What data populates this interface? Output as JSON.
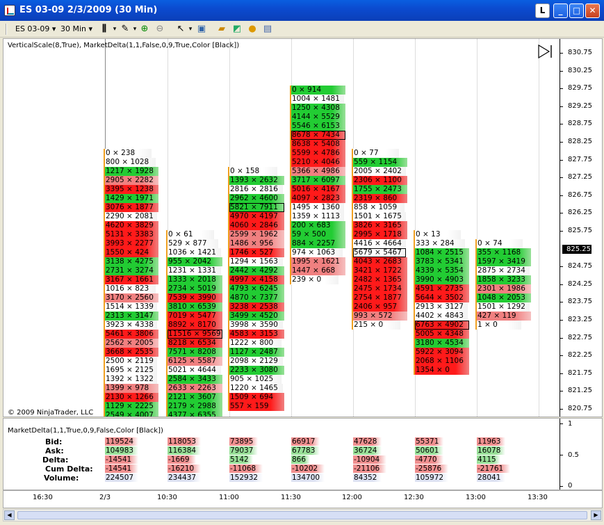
{
  "window": {
    "title": "ES 03-09  2/3/2009 (30 Min)",
    "l_label": "L",
    "min_label": "_",
    "max_label": "□",
    "close_label": "✕"
  },
  "toolbar": {
    "instrument": "ES 03-09",
    "interval": "30 Min"
  },
  "chart": {
    "indicator_label": "VerticalScale(8,True), MarketDelta(1,1,False,0,9,True,Color [Black])",
    "copyright": "© 2009 NinjaTrader, LLC",
    "current_price": "825.25",
    "price_labels": [
      "830.75",
      "830.25",
      "829.75",
      "829.25",
      "828.75",
      "828.25",
      "827.75",
      "827.25",
      "826.75",
      "826.25",
      "825.75",
      "824.75",
      "824.25",
      "823.75",
      "823.25",
      "822.75",
      "822.25",
      "821.75",
      "821.25",
      "820.75"
    ],
    "colors": {
      "green": "#22cc33",
      "lightgreen": "#99e099",
      "red": "#ff1a1a",
      "lightred": "#f08080",
      "pink": "#f6c0c0"
    }
  },
  "columns": [
    {
      "rows": [
        [
          "0 × 238",
          "w"
        ],
        [
          "800 × 1028",
          "w"
        ],
        [
          "1217 × 1928",
          "g"
        ],
        [
          "2905 × 2282",
          "lr"
        ],
        [
          "3395 × 1238",
          "r"
        ],
        [
          "1429 × 1971",
          "g"
        ],
        [
          "3076 × 1877",
          "r"
        ],
        [
          "2290 × 2081",
          "w"
        ],
        [
          "4620 × 3829",
          "r"
        ],
        [
          "5131 × 3383",
          "r"
        ],
        [
          "3993 × 2277",
          "r"
        ],
        [
          "1550 × 424",
          "r"
        ],
        [
          "3138 × 4275",
          "g"
        ],
        [
          "2731 × 3274",
          "g"
        ],
        [
          "3167 × 1661",
          "r"
        ],
        [
          "1016 × 823",
          "w"
        ],
        [
          "3170 × 2560",
          "lr"
        ],
        [
          "1514 × 1339",
          "w"
        ],
        [
          "2313 × 3147",
          "g"
        ],
        [
          "3923 × 4338",
          "w"
        ],
        [
          "5461 × 3806",
          "r"
        ],
        [
          "2562 × 2005",
          "lr"
        ],
        [
          "3668 × 2535",
          "r"
        ],
        [
          "2500 × 2119",
          "w"
        ],
        [
          "1695 × 2125",
          "w"
        ],
        [
          "1392 × 1322",
          "w"
        ],
        [
          "1399 × 978",
          "lr"
        ],
        [
          "2130 × 1266",
          "r"
        ],
        [
          "1129 × 2225",
          "g"
        ],
        [
          "2549 × 4007",
          "g"
        ]
      ]
    },
    {
      "rows": [
        [
          "0 × 61",
          "w"
        ],
        [
          "529 × 877",
          "w"
        ],
        [
          "1036 × 1421",
          "w"
        ],
        [
          "955 × 2042",
          "g"
        ],
        [
          "1231 × 1331",
          "w"
        ],
        [
          "1333 × 2018",
          "g"
        ],
        [
          "2734 × 5019",
          "g"
        ],
        [
          "7539 × 3990",
          "r"
        ],
        [
          "3810 × 6539",
          "g"
        ],
        [
          "7019 × 5477",
          "r"
        ],
        [
          "8892 × 8170",
          "r"
        ],
        [
          "11516 × 9569",
          "r"
        ],
        [
          "8218 × 6534",
          "r"
        ],
        [
          "7571 × 8208",
          "g"
        ],
        [
          "6125 × 5587",
          "lr"
        ],
        [
          "5021 × 4644",
          "w"
        ],
        [
          "2584 × 3433",
          "g"
        ],
        [
          "2633 × 2263",
          "lr"
        ],
        [
          "2121 × 3607",
          "g"
        ],
        [
          "2179 × 2988",
          "g"
        ],
        [
          "4377 × 6355",
          "g"
        ]
      ]
    },
    {
      "rows": [
        [
          "0 × 158",
          "w"
        ],
        [
          "1393 × 2632",
          "g"
        ],
        [
          "2816 × 2816",
          "w"
        ],
        [
          "2962 × 4600",
          "g"
        ],
        [
          "5821 × 7911",
          "g"
        ],
        [
          "4970 × 4197",
          "r"
        ],
        [
          "4060 × 2846",
          "r"
        ],
        [
          "2599 × 1962",
          "lr"
        ],
        [
          "1486 × 956",
          "lr"
        ],
        [
          "1746 × 527",
          "r"
        ],
        [
          "1294 × 1563",
          "w"
        ],
        [
          "2442 × 4292",
          "g"
        ],
        [
          "4997 × 4158",
          "r"
        ],
        [
          "4793 × 6245",
          "g"
        ],
        [
          "4870 × 7377",
          "g"
        ],
        [
          "3238 × 2538",
          "r"
        ],
        [
          "3499 × 4520",
          "g"
        ],
        [
          "3998 × 3590",
          "w"
        ],
        [
          "4583 × 3153",
          "r"
        ],
        [
          "1222 × 800",
          "w"
        ],
        [
          "1127 × 2487",
          "g"
        ],
        [
          "2098 × 2129",
          "w"
        ],
        [
          "2233 × 3080",
          "g"
        ],
        [
          "905 × 1025",
          "w"
        ],
        [
          "1220 × 1465",
          "w"
        ],
        [
          "1509 × 694",
          "r"
        ],
        [
          "557 × 159",
          "r"
        ]
      ]
    },
    {
      "rows": [
        [
          "0 × 914",
          "g"
        ],
        [
          "1004 × 1481",
          "w"
        ],
        [
          "1250 × 4308",
          "g"
        ],
        [
          "4144 × 5529",
          "g"
        ],
        [
          "5546 × 6153",
          "g"
        ],
        [
          "8678 × 7434",
          "r"
        ],
        [
          "8638 × 5408",
          "r"
        ],
        [
          "5599 × 4786",
          "r"
        ],
        [
          "5210 × 4046",
          "r"
        ],
        [
          "5366 × 4986",
          "lr"
        ],
        [
          "3717 × 6097",
          "g"
        ],
        [
          "5016 × 4167",
          "r"
        ],
        [
          "4097 × 2823",
          "r"
        ],
        [
          "1495 × 1360",
          "w"
        ],
        [
          "1359 × 1113",
          "w"
        ],
        [
          "200 × 683",
          "g"
        ],
        [
          "59 × 500",
          "g"
        ],
        [
          "884 × 2257",
          "g"
        ],
        [
          "974 × 1063",
          "w"
        ],
        [
          "1995 × 1621",
          "lr"
        ],
        [
          "1447 × 668",
          "lr"
        ],
        [
          "239 × 0",
          "w"
        ]
      ]
    },
    {
      "rows": [
        [
          "0 × 77",
          "w"
        ],
        [
          "559 × 1154",
          "g"
        ],
        [
          "2005 × 2402",
          "w"
        ],
        [
          "2306 × 1100",
          "r"
        ],
        [
          "1755 × 2473",
          "g"
        ],
        [
          "2319 × 860",
          "r"
        ],
        [
          "858 × 1059",
          "w"
        ],
        [
          "1501 × 1675",
          "w"
        ],
        [
          "3826 × 3165",
          "r"
        ],
        [
          "2995 × 1718",
          "r"
        ],
        [
          "4416 × 4664",
          "w"
        ],
        [
          "5679 × 5467",
          "w"
        ],
        [
          "4043 × 2683",
          "r"
        ],
        [
          "3421 × 1722",
          "r"
        ],
        [
          "2482 × 1365",
          "r"
        ],
        [
          "2475 × 1734",
          "r"
        ],
        [
          "2754 × 1877",
          "r"
        ],
        [
          "2406 × 957",
          "r"
        ],
        [
          "993 × 572",
          "lr"
        ],
        [
          "215 × 0",
          "w"
        ]
      ]
    },
    {
      "rows": [
        [
          "0 × 13",
          "w"
        ],
        [
          "333 × 284",
          "w"
        ],
        [
          "1084 × 2515",
          "g"
        ],
        [
          "3783 × 5341",
          "g"
        ],
        [
          "4339 × 5354",
          "g"
        ],
        [
          "3990 × 4903",
          "g"
        ],
        [
          "4591 × 2735",
          "r"
        ],
        [
          "5644 × 3502",
          "r"
        ],
        [
          "2913 × 3127",
          "w"
        ],
        [
          "4402 × 4843",
          "w"
        ],
        [
          "6763 × 4902",
          "r"
        ],
        [
          "5005 × 4348",
          "r"
        ],
        [
          "3180 × 4534",
          "g"
        ],
        [
          "5922 × 3094",
          "r"
        ],
        [
          "2068 × 1106",
          "r"
        ],
        [
          "1354 × 0",
          "r"
        ]
      ]
    },
    {
      "rows": [
        [
          "0 × 74",
          "w"
        ],
        [
          "355 × 1168",
          "g"
        ],
        [
          "1597 × 3419",
          "g"
        ],
        [
          "2875 × 2734",
          "w"
        ],
        [
          "1858 × 3233",
          "g"
        ],
        [
          "2301 × 1986",
          "lr"
        ],
        [
          "1048 × 2053",
          "g"
        ],
        [
          "1501 × 1292",
          "w"
        ],
        [
          "427 × 119",
          "lr"
        ],
        [
          "1 × 0",
          "w"
        ]
      ]
    }
  ],
  "indicator": {
    "label": "MarketDelta(1,1,True,0,9,False,Color [Black])",
    "row_labels": [
      "Bid:",
      "Ask:",
      "Delta:",
      "Cum Delta:",
      "Volume:"
    ],
    "scale": [
      "1",
      "0.5",
      "0"
    ],
    "bid": [
      "119524",
      "118053",
      "73895",
      "66917",
      "47628",
      "55371",
      "11963"
    ],
    "ask": [
      "104983",
      "116384",
      "79037",
      "67783",
      "36724",
      "50601",
      "16078"
    ],
    "delta": [
      "-14541",
      "-1669",
      "5142",
      "866",
      "-10904",
      "-4770",
      "4115"
    ],
    "cum_delta": [
      "-14541",
      "-16210",
      "-11068",
      "-10202",
      "-21106",
      "-25876",
      "-21761"
    ],
    "volume": [
      "224507",
      "234437",
      "152932",
      "134700",
      "84352",
      "105972",
      "28041"
    ]
  },
  "xaxis": {
    "labels": [
      "16:30",
      "2/3",
      "10:30",
      "11:00",
      "11:30",
      "12:00",
      "12:30",
      "13:00",
      "13:30"
    ]
  }
}
